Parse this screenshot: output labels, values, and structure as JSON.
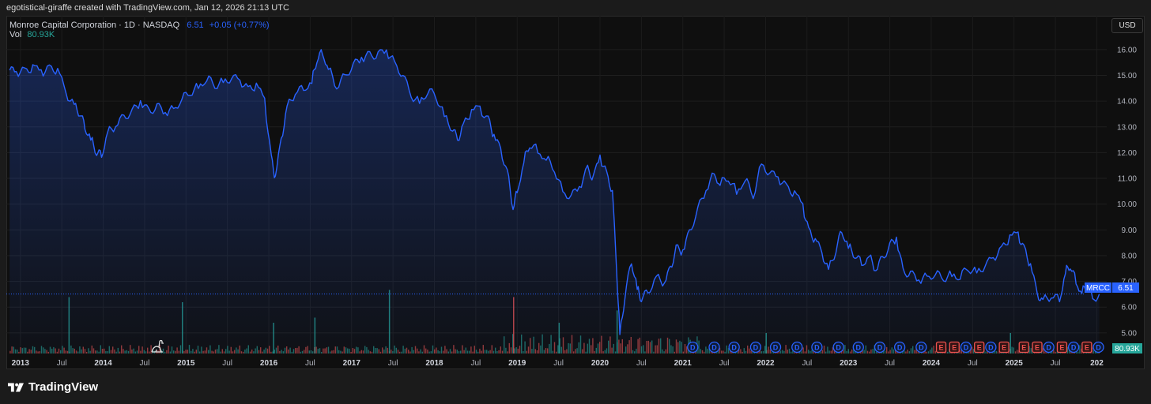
{
  "header": {
    "credit": "egotistical-giraffe created with TradingView.com, Jan 12, 2026 21:13 UTC"
  },
  "legend": {
    "symbol": "Monroe Capital Corporation · 1D · NASDAQ",
    "price": "6.51",
    "change": "+0.05 (+0.77%)",
    "vol_label": "Vol",
    "vol_value": "80.93K"
  },
  "currency_button": "USD",
  "price_tag": {
    "ticker": "MRCC",
    "value": "6.51"
  },
  "volume_tag": "80.93K",
  "brand": "TradingView",
  "colors": {
    "line": "#2962ff",
    "vol_up": "#26a69a",
    "vol_down": "#ef5350",
    "dividend": "#2962ff",
    "earnings": "#ef5350"
  },
  "chart_data": {
    "type": "area",
    "ylim": [
      4.2,
      16.7
    ],
    "y_ticks": [
      "16.00",
      "15.00",
      "14.00",
      "13.00",
      "12.00",
      "11.00",
      "10.00",
      "9.00",
      "8.00",
      "7.00",
      "6.00",
      "5.00"
    ],
    "x_ticks": [
      {
        "t": 2013.0,
        "label": "2013",
        "major": true
      },
      {
        "t": 2013.5,
        "label": "Jul",
        "major": false
      },
      {
        "t": 2014.0,
        "label": "2014",
        "major": true
      },
      {
        "t": 2014.5,
        "label": "Jul",
        "major": false
      },
      {
        "t": 2015.0,
        "label": "2015",
        "major": true
      },
      {
        "t": 2015.5,
        "label": "Jul",
        "major": false
      },
      {
        "t": 2016.0,
        "label": "2016",
        "major": true
      },
      {
        "t": 2016.5,
        "label": "Jul",
        "major": false
      },
      {
        "t": 2017.0,
        "label": "2017",
        "major": true
      },
      {
        "t": 2017.5,
        "label": "Jul",
        "major": false
      },
      {
        "t": 2018.0,
        "label": "2018",
        "major": true
      },
      {
        "t": 2018.5,
        "label": "Jul",
        "major": false
      },
      {
        "t": 2019.0,
        "label": "2019",
        "major": true
      },
      {
        "t": 2019.5,
        "label": "Jul",
        "major": false
      },
      {
        "t": 2020.0,
        "label": "2020",
        "major": true
      },
      {
        "t": 2020.5,
        "label": "Jul",
        "major": false
      },
      {
        "t": 2021.0,
        "label": "2021",
        "major": true
      },
      {
        "t": 2021.5,
        "label": "Jul",
        "major": false
      },
      {
        "t": 2022.0,
        "label": "2022",
        "major": true
      },
      {
        "t": 2022.5,
        "label": "Jul",
        "major": false
      },
      {
        "t": 2023.0,
        "label": "2023",
        "major": true
      },
      {
        "t": 2023.5,
        "label": "Jul",
        "major": false
      },
      {
        "t": 2024.0,
        "label": "2024",
        "major": true
      },
      {
        "t": 2024.5,
        "label": "Jul",
        "major": false
      },
      {
        "t": 2025.0,
        "label": "2025",
        "major": true
      },
      {
        "t": 2025.5,
        "label": "Jul",
        "major": false
      },
      {
        "t": 2026.0,
        "label": "202",
        "major": true
      }
    ],
    "xlim": [
      2012.83,
      2026.12
    ],
    "series": [
      {
        "points": [
          [
            2012.87,
            15.2
          ],
          [
            2012.95,
            15.1
          ],
          [
            2013.05,
            15.2
          ],
          [
            2013.15,
            15.3
          ],
          [
            2013.25,
            15.1
          ],
          [
            2013.35,
            15.3
          ],
          [
            2013.45,
            15.2
          ],
          [
            2013.55,
            14.3
          ],
          [
            2013.65,
            13.9
          ],
          [
            2013.72,
            13.5
          ],
          [
            2013.78,
            13.0
          ],
          [
            2013.85,
            12.6
          ],
          [
            2013.92,
            12.0
          ],
          [
            2013.98,
            11.9
          ],
          [
            2014.05,
            12.8
          ],
          [
            2014.15,
            13.0
          ],
          [
            2014.25,
            13.4
          ],
          [
            2014.35,
            13.6
          ],
          [
            2014.45,
            13.9
          ],
          [
            2014.55,
            13.6
          ],
          [
            2014.65,
            13.8
          ],
          [
            2014.75,
            13.5
          ],
          [
            2014.85,
            13.7
          ],
          [
            2014.95,
            14.1
          ],
          [
            2015.05,
            14.3
          ],
          [
            2015.15,
            14.6
          ],
          [
            2015.25,
            14.9
          ],
          [
            2015.35,
            14.6
          ],
          [
            2015.45,
            14.8
          ],
          [
            2015.55,
            14.9
          ],
          [
            2015.65,
            14.8
          ],
          [
            2015.75,
            14.5
          ],
          [
            2015.85,
            14.6
          ],
          [
            2015.95,
            14.0
          ],
          [
            2016.03,
            11.8
          ],
          [
            2016.08,
            11.0
          ],
          [
            2016.15,
            12.5
          ],
          [
            2016.22,
            13.8
          ],
          [
            2016.32,
            14.3
          ],
          [
            2016.42,
            14.5
          ],
          [
            2016.52,
            14.8
          ],
          [
            2016.58,
            15.6
          ],
          [
            2016.65,
            15.9
          ],
          [
            2016.72,
            15.3
          ],
          [
            2016.82,
            14.5
          ],
          [
            2016.92,
            15.0
          ],
          [
            2017.02,
            15.4
          ],
          [
            2017.12,
            15.6
          ],
          [
            2017.22,
            15.8
          ],
          [
            2017.32,
            15.8
          ],
          [
            2017.42,
            15.9
          ],
          [
            2017.52,
            15.5
          ],
          [
            2017.62,
            15.0
          ],
          [
            2017.72,
            14.2
          ],
          [
            2017.82,
            14.0
          ],
          [
            2017.92,
            14.4
          ],
          [
            2018.02,
            14.2
          ],
          [
            2018.12,
            13.5
          ],
          [
            2018.22,
            12.9
          ],
          [
            2018.28,
            12.5
          ],
          [
            2018.35,
            13.1
          ],
          [
            2018.45,
            13.6
          ],
          [
            2018.55,
            13.7
          ],
          [
            2018.65,
            13.3
          ],
          [
            2018.72,
            12.6
          ],
          [
            2018.8,
            12.1
          ],
          [
            2018.88,
            11.3
          ],
          [
            2018.95,
            9.8
          ],
          [
            2019.0,
            10.5
          ],
          [
            2019.08,
            11.7
          ],
          [
            2019.15,
            12.3
          ],
          [
            2019.25,
            12.1
          ],
          [
            2019.35,
            11.8
          ],
          [
            2019.45,
            11.3
          ],
          [
            2019.55,
            10.5
          ],
          [
            2019.65,
            10.3
          ],
          [
            2019.75,
            10.6
          ],
          [
            2019.85,
            11.4
          ],
          [
            2019.92,
            11.0
          ],
          [
            2020.0,
            11.8
          ],
          [
            2020.08,
            11.2
          ],
          [
            2020.15,
            10.5
          ],
          [
            2020.2,
            7.5
          ],
          [
            2020.24,
            5.0
          ],
          [
            2020.3,
            6.4
          ],
          [
            2020.38,
            7.8
          ],
          [
            2020.45,
            6.8
          ],
          [
            2020.5,
            6.3
          ],
          [
            2020.58,
            6.6
          ],
          [
            2020.68,
            7.2
          ],
          [
            2020.78,
            6.9
          ],
          [
            2020.85,
            7.5
          ],
          [
            2020.92,
            8.3
          ],
          [
            2021.0,
            8.1
          ],
          [
            2021.08,
            8.9
          ],
          [
            2021.18,
            9.8
          ],
          [
            2021.28,
            10.5
          ],
          [
            2021.38,
            11.2
          ],
          [
            2021.45,
            10.8
          ],
          [
            2021.55,
            11.0
          ],
          [
            2021.65,
            10.5
          ],
          [
            2021.75,
            11.0
          ],
          [
            2021.85,
            10.3
          ],
          [
            2021.95,
            11.6
          ],
          [
            2022.05,
            11.2
          ],
          [
            2022.15,
            11.0
          ],
          [
            2022.25,
            10.7
          ],
          [
            2022.35,
            10.4
          ],
          [
            2022.45,
            9.9
          ],
          [
            2022.52,
            9.0
          ],
          [
            2022.6,
            8.6
          ],
          [
            2022.68,
            8.1
          ],
          [
            2022.76,
            7.5
          ],
          [
            2022.85,
            8.2
          ],
          [
            2022.92,
            9.0
          ],
          [
            2023.0,
            8.4
          ],
          [
            2023.08,
            8.0
          ],
          [
            2023.16,
            7.7
          ],
          [
            2023.25,
            8.0
          ],
          [
            2023.33,
            7.4
          ],
          [
            2023.41,
            7.9
          ],
          [
            2023.5,
            8.4
          ],
          [
            2023.58,
            8.6
          ],
          [
            2023.66,
            7.4
          ],
          [
            2023.75,
            7.3
          ],
          [
            2023.85,
            7.0
          ],
          [
            2023.95,
            7.2
          ],
          [
            2024.05,
            7.3
          ],
          [
            2024.15,
            7.1
          ],
          [
            2024.25,
            7.3
          ],
          [
            2024.35,
            7.2
          ],
          [
            2024.45,
            7.5
          ],
          [
            2024.55,
            7.4
          ],
          [
            2024.65,
            7.6
          ],
          [
            2024.75,
            7.9
          ],
          [
            2024.85,
            8.3
          ],
          [
            2024.95,
            8.7
          ],
          [
            2025.05,
            8.8
          ],
          [
            2025.12,
            8.3
          ],
          [
            2025.2,
            7.6
          ],
          [
            2025.28,
            6.5
          ],
          [
            2025.35,
            6.3
          ],
          [
            2025.45,
            6.4
          ],
          [
            2025.55,
            6.3
          ],
          [
            2025.62,
            7.4
          ],
          [
            2025.68,
            7.6
          ],
          [
            2025.75,
            7.0
          ],
          [
            2025.82,
            6.6
          ],
          [
            2025.88,
            6.8
          ],
          [
            2025.95,
            6.3
          ],
          [
            2026.03,
            6.51
          ]
        ]
      }
    ],
    "volume_spikes": [
      [
        2013.58,
        0.55
      ],
      [
        2014.95,
        0.5
      ],
      [
        2016.05,
        0.3
      ],
      [
        2016.55,
        0.35
      ],
      [
        2017.45,
        0.62
      ],
      [
        2018.95,
        0.55
      ],
      [
        2019.5,
        0.3
      ],
      [
        2020.2,
        0.42
      ],
      [
        2022.0,
        0.2
      ],
      [
        2024.95,
        0.2
      ]
    ],
    "events": [
      {
        "t": 2021.12,
        "k": "D"
      },
      {
        "t": 2021.38,
        "k": "D"
      },
      {
        "t": 2021.62,
        "k": "D"
      },
      {
        "t": 2021.88,
        "k": "D"
      },
      {
        "t": 2022.12,
        "k": "D"
      },
      {
        "t": 2022.38,
        "k": "D"
      },
      {
        "t": 2022.62,
        "k": "D"
      },
      {
        "t": 2022.88,
        "k": "D"
      },
      {
        "t": 2023.12,
        "k": "D"
      },
      {
        "t": 2023.38,
        "k": "D"
      },
      {
        "t": 2023.62,
        "k": "D"
      },
      {
        "t": 2023.88,
        "k": "D"
      },
      {
        "t": 2024.12,
        "k": "E"
      },
      {
        "t": 2024.28,
        "k": "E"
      },
      {
        "t": 2024.42,
        "k": "D"
      },
      {
        "t": 2024.58,
        "k": "E"
      },
      {
        "t": 2024.72,
        "k": "D"
      },
      {
        "t": 2024.88,
        "k": "E"
      },
      {
        "t": 2025.12,
        "k": "E"
      },
      {
        "t": 2025.28,
        "k": "E"
      },
      {
        "t": 2025.42,
        "k": "D"
      },
      {
        "t": 2025.58,
        "k": "E"
      },
      {
        "t": 2025.72,
        "k": "D"
      },
      {
        "t": 2025.88,
        "k": "E"
      },
      {
        "t": 2026.02,
        "k": "D"
      }
    ]
  }
}
